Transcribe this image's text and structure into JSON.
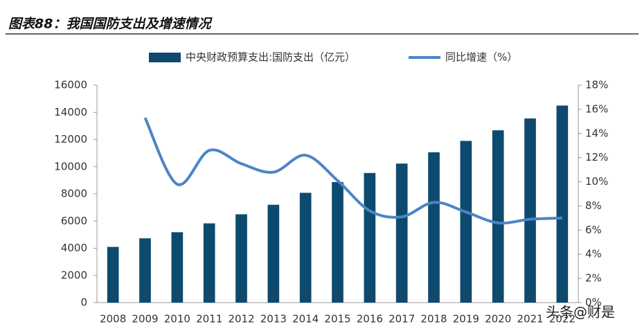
{
  "chart_data": {
    "type": "bar",
    "title": "图表88：我国国防支出及增速情况",
    "categories": [
      "2008",
      "2009",
      "2010",
      "2011",
      "2012",
      "2013",
      "2014",
      "2015",
      "2016",
      "2017",
      "2018",
      "2019",
      "2020",
      "2021",
      "2022"
    ],
    "series": [
      {
        "name": "中央财政预算支出:国防支出（亿元）",
        "type": "bar",
        "color": "#0e4a6e",
        "values": [
          4100,
          4730,
          5180,
          5830,
          6500,
          7200,
          8080,
          8870,
          9540,
          10230,
          11060,
          11900,
          12680,
          13550,
          14500
        ]
      },
      {
        "name": "同比增速（%）",
        "type": "line",
        "axis": "y2",
        "color": "#4a86c5",
        "values": [
          null,
          15.3,
          9.8,
          12.6,
          11.5,
          10.8,
          12.2,
          10.1,
          7.6,
          7.1,
          8.3,
          7.5,
          6.6,
          6.9,
          7.0
        ]
      }
    ],
    "ylim": [
      0,
      16000
    ],
    "yticks": [
      0,
      2000,
      4000,
      6000,
      8000,
      10000,
      12000,
      14000,
      16000
    ],
    "y2lim": [
      0,
      18
    ],
    "y2ticks": [
      {
        "value": 0,
        "label": "0%"
      },
      {
        "value": 2,
        "label": "2%"
      },
      {
        "value": 4,
        "label": "4%"
      },
      {
        "value": 6,
        "label": "6%"
      },
      {
        "value": 8,
        "label": "8%"
      },
      {
        "value": 10,
        "label": "10%"
      },
      {
        "value": 12,
        "label": "12%"
      },
      {
        "value": 14,
        "label": "14%"
      },
      {
        "value": 16,
        "label": "16%"
      },
      {
        "value": 18,
        "label": "18%"
      }
    ],
    "legend": "top",
    "grid": false
  },
  "watermark": "头条@财是"
}
